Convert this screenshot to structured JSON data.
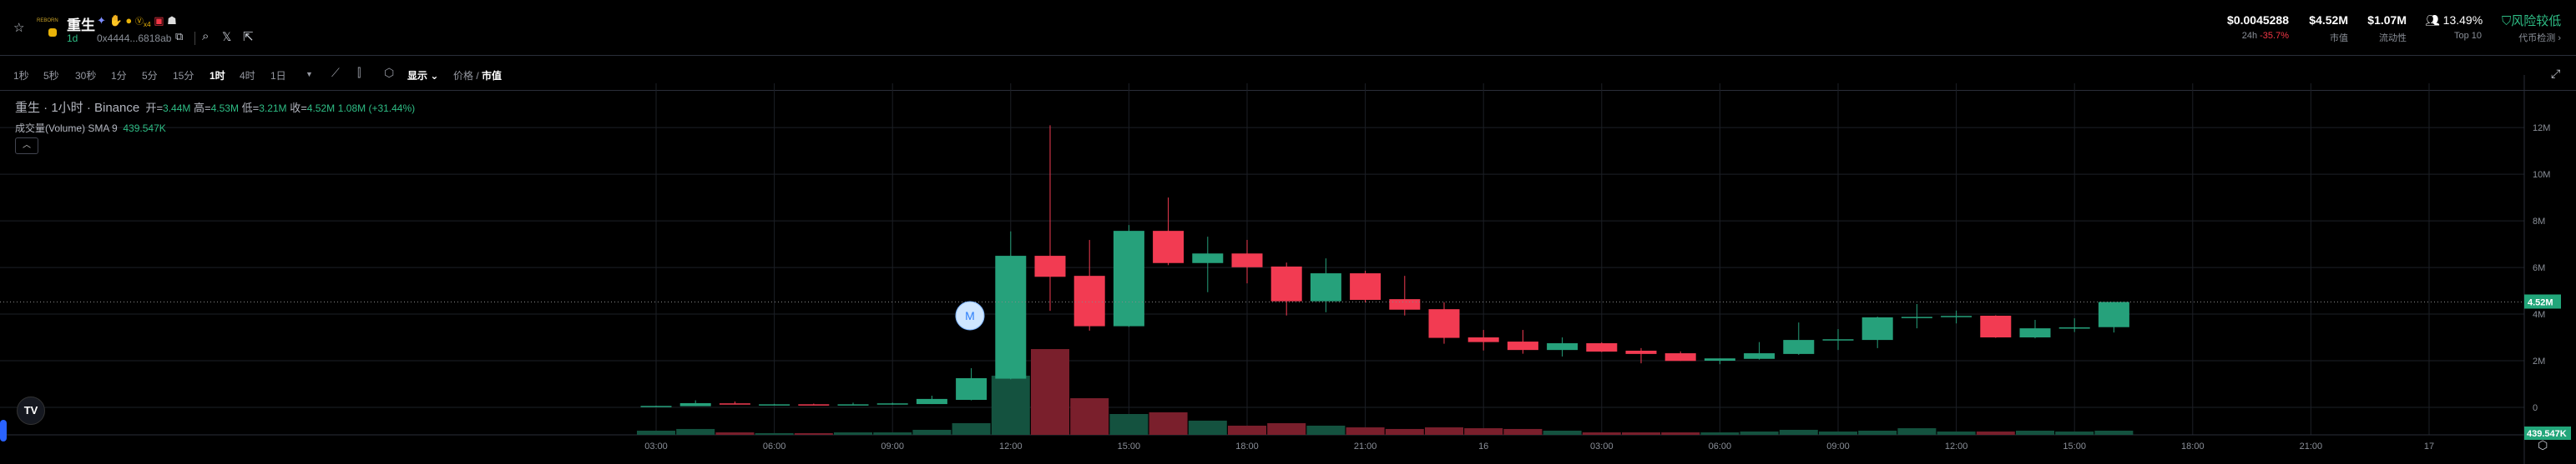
{
  "header": {
    "title": "重生",
    "logo_text": "REBORN",
    "age": "1d",
    "address": "0x4444...6818ab",
    "badge_x4": "x4"
  },
  "stats": {
    "price": "$0.0045288",
    "change_label": "24h",
    "change": "-35.7%",
    "mcap": "$4.52M",
    "mcap_label": "市值",
    "liquidity": "$1.07M",
    "liquidity_label": "流动性",
    "holders": "13.49%",
    "holders_label": "Top 10",
    "risk": "风险较低",
    "risk_label": "代币检测 ›"
  },
  "toolbar": {
    "intervals": [
      "1秒",
      "5秒",
      "30秒",
      "1分",
      "5分",
      "15分",
      "1时",
      "4时",
      "1日"
    ],
    "active_interval": "1时",
    "display": "显示",
    "price": "价格",
    "mcap": "市值"
  },
  "legend": {
    "symbol": "重生 · 1小时 · Binance",
    "o_label": "开=",
    "o": "3.44M",
    "h_label": "高=",
    "h": "4.53M",
    "l_label": "低=",
    "l": "3.21M",
    "c_label": "收=",
    "c": "4.52M",
    "change": "1.08M (+31.44%)",
    "volume_label": "成交量(Volume) SMA 9",
    "volume_sma": "439.547K"
  },
  "marker": "M",
  "colors": {
    "up": "#26a17b",
    "down": "#f23b52",
    "vol_up": "#14523f",
    "vol_down": "#7a1f2c",
    "accent": "#22a67a"
  },
  "chart_data": {
    "type": "candlestick",
    "unit": "market cap",
    "ylim": [
      -1.18,
      13.9
    ],
    "yticks": [
      {
        "v": 12,
        "label": "12M"
      },
      {
        "v": 10,
        "label": "10M"
      },
      {
        "v": 8,
        "label": "8M"
      },
      {
        "v": 6,
        "label": "6M"
      },
      {
        "v": 4,
        "label": "4M"
      },
      {
        "v": 2,
        "label": "2M"
      },
      {
        "v": 0,
        "label": "0"
      }
    ],
    "xticks": [
      "03:00",
      "06:00",
      "09:00",
      "12:00",
      "15:00",
      "18:00",
      "21:00",
      "16",
      "03:00",
      "06:00",
      "09:00",
      "12:00",
      "15:00",
      "18:00",
      "21:00",
      "17"
    ],
    "last_price_label": "4.52M",
    "last_volume_label": "439.547K",
    "candles": [
      [
        0.05,
        0.07,
        0.05,
        0.06,
        0.44
      ],
      [
        0.05,
        0.3,
        0.05,
        0.18,
        0.62
      ],
      [
        0.17,
        0.25,
        0.14,
        0.15,
        0.26
      ],
      [
        0.12,
        0.15,
        0.11,
        0.13,
        0.18
      ],
      [
        0.13,
        0.16,
        0.11,
        0.12,
        0.18
      ],
      [
        0.12,
        0.2,
        0.11,
        0.13,
        0.26
      ],
      [
        0.12,
        0.2,
        0.11,
        0.17,
        0.26
      ],
      [
        0.14,
        0.5,
        0.14,
        0.36,
        0.53
      ],
      [
        0.32,
        1.68,
        0.3,
        1.25,
        1.23
      ],
      [
        1.23,
        7.55,
        1.2,
        6.5,
        6.25
      ],
      [
        6.5,
        12.1,
        4.14,
        5.6,
        9.06
      ],
      [
        5.64,
        7.18,
        3.29,
        3.48,
        3.87
      ],
      [
        3.48,
        7.82,
        3.45,
        7.57,
        2.2
      ],
      [
        7.57,
        9.0,
        6.1,
        6.19,
        2.38
      ],
      [
        6.19,
        7.32,
        4.94,
        6.6,
        1.5
      ],
      [
        6.6,
        7.18,
        5.32,
        6.01,
        0.97
      ],
      [
        6.04,
        6.21,
        3.94,
        4.55,
        1.23
      ],
      [
        4.55,
        6.39,
        4.08,
        5.75,
        0.97
      ],
      [
        5.75,
        5.86,
        4.5,
        4.61,
        0.79
      ],
      [
        4.64,
        5.64,
        3.94,
        4.19,
        0.62
      ],
      [
        4.21,
        4.5,
        2.73,
        2.98,
        0.79
      ],
      [
        3.0,
        3.32,
        2.44,
        2.8,
        0.7
      ],
      [
        2.82,
        3.32,
        2.3,
        2.46,
        0.62
      ],
      [
        2.46,
        3.0,
        2.18,
        2.75,
        0.44
      ],
      [
        2.75,
        2.79,
        2.37,
        2.39,
        0.26
      ],
      [
        2.43,
        2.54,
        1.89,
        2.29,
        0.26
      ],
      [
        2.32,
        2.4,
        1.99,
        1.99,
        0.26
      ],
      [
        2.0,
        2.1,
        1.85,
        2.1,
        0.26
      ],
      [
        2.08,
        2.8,
        2.05,
        2.32,
        0.35
      ],
      [
        2.29,
        3.64,
        2.25,
        2.89,
        0.53
      ],
      [
        2.87,
        3.36,
        2.46,
        2.92,
        0.35
      ],
      [
        2.89,
        3.89,
        2.54,
        3.86,
        0.44
      ],
      [
        3.86,
        4.43,
        3.39,
        3.88,
        0.7
      ],
      [
        3.9,
        4.15,
        3.6,
        3.92,
        0.35
      ],
      [
        3.93,
        3.95,
        2.98,
        3.0,
        0.35
      ],
      [
        3.0,
        3.75,
        2.96,
        3.39,
        0.44
      ],
      [
        3.42,
        3.82,
        3.23,
        3.43,
        0.35
      ],
      [
        3.44,
        4.53,
        3.21,
        4.52,
        0.44
      ]
    ]
  }
}
